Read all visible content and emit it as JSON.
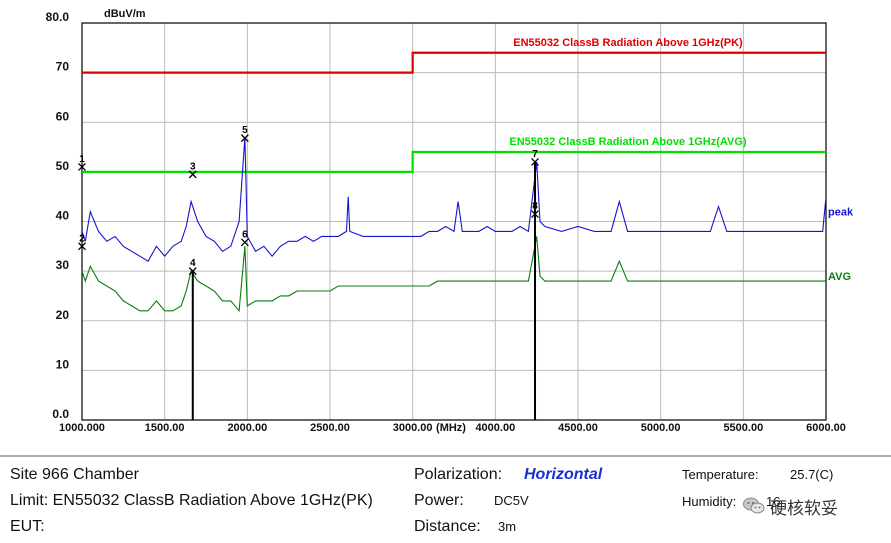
{
  "chart_data": {
    "type": "line",
    "ylabel": "dBuV/m",
    "xlabel": "(MHz)",
    "xlim": [
      1000,
      6000
    ],
    "ylim": [
      0,
      80
    ],
    "x_ticks": [
      "1000.000",
      "1500.00",
      "2000.00",
      "2500.00",
      "3000.00",
      "4000.00",
      "4500.00",
      "5000.00",
      "5500.00",
      "6000.00"
    ],
    "y_ticks": [
      "80.0",
      "70",
      "60",
      "50",
      "40",
      "30",
      "20",
      "10",
      "0.0"
    ],
    "grid": true,
    "limit_lines": [
      {
        "name": "EN55032 ClassB Radiation Above 1GHz(PK)",
        "color": "#e00000",
        "segments": [
          [
            1000,
            3000,
            70
          ],
          [
            3000,
            6000,
            74
          ]
        ]
      },
      {
        "name": "EN55032 ClassB Radiation Above 1GHz(AVG)",
        "color": "#00e000",
        "segments": [
          [
            1000,
            3000,
            50
          ],
          [
            3000,
            6000,
            54
          ]
        ]
      }
    ],
    "series": [
      {
        "name": "peak",
        "color": "#1515d0",
        "points": [
          [
            1000,
            38
          ],
          [
            1020,
            36
          ],
          [
            1050,
            42
          ],
          [
            1100,
            38
          ],
          [
            1150,
            36
          ],
          [
            1200,
            37
          ],
          [
            1250,
            35
          ],
          [
            1300,
            34
          ],
          [
            1350,
            33
          ],
          [
            1400,
            32
          ],
          [
            1450,
            35
          ],
          [
            1500,
            33
          ],
          [
            1550,
            35
          ],
          [
            1600,
            36
          ],
          [
            1630,
            39
          ],
          [
            1660,
            44
          ],
          [
            1680,
            42
          ],
          [
            1700,
            40
          ],
          [
            1750,
            37
          ],
          [
            1800,
            36
          ],
          [
            1850,
            34
          ],
          [
            1900,
            35
          ],
          [
            1950,
            40
          ],
          [
            1985,
            57
          ],
          [
            2000,
            37
          ],
          [
            2050,
            34
          ],
          [
            2100,
            35
          ],
          [
            2150,
            33
          ],
          [
            2200,
            35
          ],
          [
            2250,
            36
          ],
          [
            2300,
            36
          ],
          [
            2350,
            37
          ],
          [
            2400,
            36
          ],
          [
            2450,
            37
          ],
          [
            2500,
            37
          ],
          [
            2550,
            37
          ],
          [
            2600,
            38
          ],
          [
            2610,
            45
          ],
          [
            2620,
            38
          ],
          [
            2700,
            37
          ],
          [
            2800,
            37
          ],
          [
            2900,
            37
          ],
          [
            3000,
            37
          ],
          [
            3100,
            37
          ],
          [
            3200,
            38
          ],
          [
            3300,
            38
          ],
          [
            3400,
            39
          ],
          [
            3500,
            38
          ],
          [
            3550,
            44
          ],
          [
            3600,
            38
          ],
          [
            3700,
            38
          ],
          [
            3800,
            38
          ],
          [
            3900,
            39
          ],
          [
            4000,
            38
          ],
          [
            4100,
            38
          ],
          [
            4150,
            39
          ],
          [
            4200,
            38
          ],
          [
            4250,
            52
          ],
          [
            4270,
            40
          ],
          [
            4300,
            39
          ],
          [
            4400,
            38
          ],
          [
            4500,
            39
          ],
          [
            4600,
            38
          ],
          [
            4700,
            38
          ],
          [
            4750,
            44
          ],
          [
            4800,
            38
          ],
          [
            4900,
            38
          ],
          [
            5000,
            38
          ],
          [
            5100,
            38
          ],
          [
            5200,
            38
          ],
          [
            5300,
            38
          ],
          [
            5350,
            43
          ],
          [
            5400,
            38
          ],
          [
            5500,
            38
          ],
          [
            5600,
            38
          ],
          [
            5700,
            38
          ],
          [
            5800,
            38
          ],
          [
            5900,
            38
          ],
          [
            5980,
            38
          ],
          [
            6000,
            45
          ]
        ]
      },
      {
        "name": "AVG",
        "color": "#0a7d0a",
        "points": [
          [
            1000,
            30
          ],
          [
            1020,
            28
          ],
          [
            1050,
            31
          ],
          [
            1100,
            28
          ],
          [
            1150,
            27
          ],
          [
            1200,
            26
          ],
          [
            1250,
            24
          ],
          [
            1300,
            23
          ],
          [
            1350,
            22
          ],
          [
            1400,
            22
          ],
          [
            1450,
            24
          ],
          [
            1500,
            22
          ],
          [
            1550,
            22
          ],
          [
            1600,
            23
          ],
          [
            1630,
            26
          ],
          [
            1660,
            30
          ],
          [
            1680,
            29
          ],
          [
            1700,
            28
          ],
          [
            1750,
            27
          ],
          [
            1800,
            26
          ],
          [
            1850,
            24
          ],
          [
            1900,
            24
          ],
          [
            1950,
            22
          ],
          [
            1985,
            35
          ],
          [
            2000,
            23
          ],
          [
            2050,
            24
          ],
          [
            2100,
            24
          ],
          [
            2150,
            24
          ],
          [
            2200,
            25
          ],
          [
            2250,
            25
          ],
          [
            2300,
            26
          ],
          [
            2350,
            26
          ],
          [
            2400,
            26
          ],
          [
            2450,
            26
          ],
          [
            2500,
            26
          ],
          [
            2550,
            27
          ],
          [
            2600,
            27
          ],
          [
            2700,
            27
          ],
          [
            2800,
            27
          ],
          [
            2900,
            27
          ],
          [
            3000,
            27
          ],
          [
            3100,
            27
          ],
          [
            3200,
            27
          ],
          [
            3300,
            28
          ],
          [
            3400,
            28
          ],
          [
            3500,
            28
          ],
          [
            3600,
            28
          ],
          [
            3700,
            28
          ],
          [
            3800,
            28
          ],
          [
            3900,
            28
          ],
          [
            4000,
            28
          ],
          [
            4100,
            28
          ],
          [
            4150,
            28
          ],
          [
            4200,
            28
          ],
          [
            4250,
            37
          ],
          [
            4270,
            29
          ],
          [
            4300,
            28
          ],
          [
            4400,
            28
          ],
          [
            4500,
            28
          ],
          [
            4600,
            28
          ],
          [
            4700,
            28
          ],
          [
            4750,
            32
          ],
          [
            4800,
            28
          ],
          [
            4900,
            28
          ],
          [
            5000,
            28
          ],
          [
            5100,
            28
          ],
          [
            5200,
            28
          ],
          [
            5300,
            28
          ],
          [
            5400,
            28
          ],
          [
            5500,
            28
          ],
          [
            5600,
            28
          ],
          [
            5700,
            28
          ],
          [
            5800,
            28
          ],
          [
            5900,
            28
          ],
          [
            6000,
            28
          ]
        ]
      }
    ],
    "markers": [
      {
        "label": "1",
        "x": 1000,
        "y": 51,
        "stem": false
      },
      {
        "label": "2",
        "x": 1000,
        "y": 35,
        "stem": false
      },
      {
        "label": "3",
        "x": 1670,
        "y": 49.5,
        "stem": false
      },
      {
        "label": "4",
        "x": 1670,
        "y": 30,
        "stem": true
      },
      {
        "label": "5",
        "x": 1985,
        "y": 56.8,
        "stem": false
      },
      {
        "label": "6",
        "x": 1985,
        "y": 35.8,
        "stem": false
      },
      {
        "label": "7",
        "x": 4240,
        "y": 52,
        "stem": true
      },
      {
        "label": "8",
        "x": 4240,
        "y": 41.5,
        "stem": false
      }
    ],
    "legend_labels": [
      {
        "text": "peak",
        "color": "#1515d0",
        "y": 42
      },
      {
        "text": "AVG",
        "color": "#0a7d0a",
        "y": 29
      }
    ]
  },
  "info": {
    "site": "Site 966 Chamber",
    "limit": "Limit: EN55032 ClassB Radiation Above 1GHz(PK)",
    "eut": "EUT:",
    "polarization_label": "Polarization:",
    "polarization_value": "Horizontal",
    "power_label": "Power:",
    "power_value": "DC5V",
    "distance_label": "Distance:",
    "distance_value": "3m",
    "temperature_label": "Temperature:",
    "temperature_value": "25.7(C)",
    "humidity_label": "Humidity:",
    "humidity_value": "16",
    "watermark": "硬核软妥"
  }
}
